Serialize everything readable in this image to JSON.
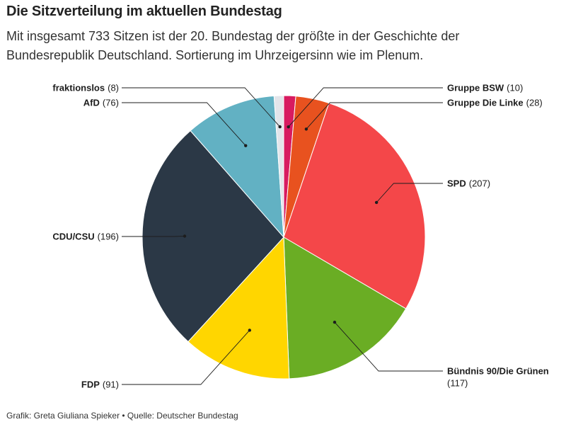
{
  "header": {
    "title": "Die Sitzverteilung im aktuellen Bundestag",
    "subtitle": "Mit insgesamt 733 Sitzen ist der 20. Bundestag der größte in der Geschichte der Bundesrepublik Deutschland. Sortierung im Uhrzeigersinn wie im Plenum."
  },
  "footer": {
    "credit": "Grafik: Greta Giuliana Spieker • Quelle: Deutscher Bundestag"
  },
  "chart_data": {
    "type": "pie",
    "order": "clockwise, starting at top",
    "total": 733,
    "slices": [
      {
        "name": "Gruppe BSW",
        "count": "(10)",
        "value": 10,
        "color": "#d81b60"
      },
      {
        "name": "Gruppe Die Linke",
        "count": "(28)",
        "value": 28,
        "color": "#e8521f"
      },
      {
        "name": "SPD",
        "count": "(207)",
        "value": 207,
        "color": "#f44749"
      },
      {
        "name": "Bündnis 90/Die Grünen",
        "count": "(117)",
        "value": 117,
        "color": "#6aad24"
      },
      {
        "name": "FDP",
        "count": "(91)",
        "value": 91,
        "color": "#ffd600"
      },
      {
        "name": "CDU/CSU",
        "count": "(196)",
        "value": 196,
        "color": "#2b3846"
      },
      {
        "name": "AfD",
        "count": "(76)",
        "value": 76,
        "color": "#62b1c3"
      },
      {
        "name": "fraktionslos",
        "count": "(8)",
        "value": 8,
        "color": "#e3e5ea"
      }
    ]
  }
}
